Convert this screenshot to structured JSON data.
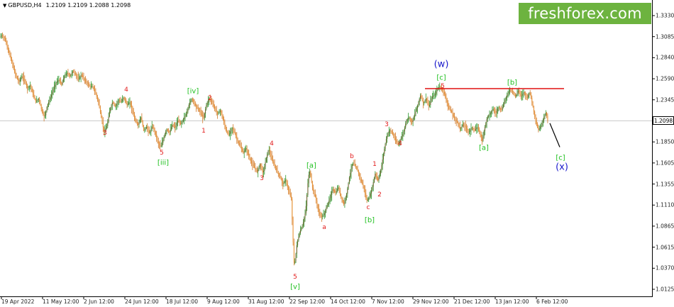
{
  "header": {
    "symbol": "GBPUSD,H4",
    "ohlc": "1.2109 1.2109 1.2088 1.2098"
  },
  "logo": {
    "text": "freshforex.com"
  },
  "current_price": "1.2098",
  "chart_data": {
    "type": "line",
    "y_ticks": [
      "1.3330",
      "1.3085",
      "1.2840",
      "1.2590",
      "1.2345",
      "1.2098",
      "1.1850",
      "1.1605",
      "1.1355",
      "1.1110",
      "1.0865",
      "1.0615",
      "1.0370",
      "1.0125"
    ],
    "x_ticks": [
      "19 Apr 2022",
      "11 May 12:00",
      "2 Jun 12:00",
      "24 Jun 12:00",
      "18 Jul 12:00",
      "9 Aug 12:00",
      "31 Aug 12:00",
      "22 Sep 12:00",
      "14 Oct 12:00",
      "7 Nov 12:00",
      "29 Nov 12:00",
      "21 Dec 12:00",
      "13 Jan 12:00",
      "6 Feb 12:00"
    ],
    "price_path": [
      [
        0,
        1.307
      ],
      [
        4,
        1.31
      ],
      [
        8,
        1.306
      ],
      [
        12,
        1.295
      ],
      [
        16,
        1.284
      ],
      [
        20,
        1.272
      ],
      [
        24,
        1.262
      ],
      [
        28,
        1.255
      ],
      [
        32,
        1.262
      ],
      [
        36,
        1.257
      ],
      [
        40,
        1.248
      ],
      [
        44,
        1.251
      ],
      [
        48,
        1.24
      ],
      [
        52,
        1.232
      ],
      [
        56,
        1.236
      ],
      [
        60,
        1.222
      ],
      [
        64,
        1.214
      ],
      [
        68,
        1.228
      ],
      [
        72,
        1.236
      ],
      [
        76,
        1.246
      ],
      [
        80,
        1.254
      ],
      [
        84,
        1.258
      ],
      [
        88,
        1.252
      ],
      [
        92,
        1.262
      ],
      [
        96,
        1.266
      ],
      [
        100,
        1.262
      ],
      [
        104,
        1.268
      ],
      [
        108,
        1.264
      ],
      [
        112,
        1.258
      ],
      [
        116,
        1.264
      ],
      [
        120,
        1.258
      ],
      [
        124,
        1.254
      ],
      [
        128,
        1.25
      ],
      [
        132,
        1.25
      ],
      [
        136,
        1.242
      ],
      [
        140,
        1.232
      ],
      [
        144,
        1.214
      ],
      [
        148,
        1.196
      ],
      [
        152,
        1.204
      ],
      [
        156,
        1.222
      ],
      [
        160,
        1.232
      ],
      [
        164,
        1.226
      ],
      [
        168,
        1.234
      ],
      [
        172,
        1.232
      ],
      [
        176,
        1.238
      ],
      [
        180,
        1.228
      ],
      [
        184,
        1.232
      ],
      [
        188,
        1.222
      ],
      [
        192,
        1.21
      ],
      [
        196,
        1.205
      ],
      [
        200,
        1.214
      ],
      [
        204,
        1.198
      ],
      [
        208,
        1.203
      ],
      [
        212,
        1.195
      ],
      [
        216,
        1.204
      ],
      [
        220,
        1.196
      ],
      [
        224,
        1.184
      ],
      [
        228,
        1.179
      ],
      [
        232,
        1.19
      ],
      [
        236,
        1.2
      ],
      [
        240,
        1.196
      ],
      [
        244,
        1.205
      ],
      [
        248,
        1.202
      ],
      [
        252,
        1.21
      ],
      [
        256,
        1.206
      ],
      [
        260,
        1.212
      ],
      [
        264,
        1.218
      ],
      [
        268,
        1.23
      ],
      [
        272,
        1.236
      ],
      [
        276,
        1.229
      ],
      [
        280,
        1.224
      ],
      [
        284,
        1.22
      ],
      [
        288,
        1.212
      ],
      [
        292,
        1.228
      ],
      [
        296,
        1.236
      ],
      [
        300,
        1.232
      ],
      [
        304,
        1.224
      ],
      [
        308,
        1.218
      ],
      [
        312,
        1.222
      ],
      [
        316,
        1.21
      ],
      [
        320,
        1.198
      ],
      [
        324,
        1.193
      ],
      [
        328,
        1.202
      ],
      [
        332,
        1.196
      ],
      [
        336,
        1.186
      ],
      [
        340,
        1.18
      ],
      [
        344,
        1.172
      ],
      [
        348,
        1.178
      ],
      [
        352,
        1.168
      ],
      [
        356,
        1.16
      ],
      [
        360,
        1.155
      ],
      [
        364,
        1.15
      ],
      [
        368,
        1.16
      ],
      [
        372,
        1.148
      ],
      [
        376,
        1.164
      ],
      [
        380,
        1.177
      ],
      [
        384,
        1.165
      ],
      [
        388,
        1.158
      ],
      [
        392,
        1.15
      ],
      [
        396,
        1.144
      ],
      [
        400,
        1.136
      ],
      [
        404,
        1.14
      ],
      [
        408,
        1.128
      ],
      [
        412,
        1.118
      ],
      [
        414,
        1.075
      ],
      [
        416,
        1.038
      ],
      [
        418,
        1.052
      ],
      [
        420,
        1.067
      ],
      [
        424,
        1.08
      ],
      [
        428,
        1.088
      ],
      [
        432,
        1.104
      ],
      [
        434,
        1.124
      ],
      [
        436,
        1.145
      ],
      [
        438,
        1.151
      ],
      [
        440,
        1.14
      ],
      [
        442,
        1.13
      ],
      [
        446,
        1.12
      ],
      [
        450,
        1.104
      ],
      [
        454,
        1.097
      ],
      [
        458,
        1.1
      ],
      [
        462,
        1.11
      ],
      [
        466,
        1.118
      ],
      [
        470,
        1.13
      ],
      [
        474,
        1.125
      ],
      [
        478,
        1.132
      ],
      [
        482,
        1.12
      ],
      [
        486,
        1.112
      ],
      [
        490,
        1.125
      ],
      [
        494,
        1.145
      ],
      [
        498,
        1.16
      ],
      [
        502,
        1.157
      ],
      [
        506,
        1.15
      ],
      [
        510,
        1.14
      ],
      [
        514,
        1.132
      ],
      [
        518,
        1.116
      ],
      [
        522,
        1.12
      ],
      [
        526,
        1.132
      ],
      [
        530,
        1.148
      ],
      [
        534,
        1.14
      ],
      [
        538,
        1.152
      ],
      [
        542,
        1.172
      ],
      [
        546,
        1.19
      ],
      [
        550,
        1.199
      ],
      [
        554,
        1.196
      ],
      [
        558,
        1.188
      ],
      [
        562,
        1.182
      ],
      [
        566,
        1.188
      ],
      [
        570,
        1.196
      ],
      [
        574,
        1.21
      ],
      [
        578,
        1.214
      ],
      [
        582,
        1.208
      ],
      [
        586,
        1.218
      ],
      [
        590,
        1.228
      ],
      [
        594,
        1.24
      ],
      [
        598,
        1.23
      ],
      [
        602,
        1.236
      ],
      [
        606,
        1.226
      ],
      [
        610,
        1.238
      ],
      [
        614,
        1.24
      ],
      [
        618,
        1.248
      ],
      [
        622,
        1.25
      ],
      [
        626,
        1.244
      ],
      [
        630,
        1.236
      ],
      [
        634,
        1.224
      ],
      [
        638,
        1.22
      ],
      [
        642,
        1.212
      ],
      [
        646,
        1.208
      ],
      [
        650,
        1.2
      ],
      [
        654,
        1.206
      ],
      [
        658,
        1.202
      ],
      [
        662,
        1.196
      ],
      [
        666,
        1.202
      ],
      [
        670,
        1.198
      ],
      [
        674,
        1.203
      ],
      [
        678,
        1.195
      ],
      [
        681,
        1.186
      ],
      [
        684,
        1.2
      ],
      [
        688,
        1.214
      ],
      [
        692,
        1.218
      ],
      [
        696,
        1.224
      ],
      [
        700,
        1.218
      ],
      [
        704,
        1.226
      ],
      [
        708,
        1.222
      ],
      [
        712,
        1.232
      ],
      [
        716,
        1.24
      ],
      [
        720,
        1.246
      ],
      [
        724,
        1.244
      ],
      [
        728,
        1.238
      ],
      [
        732,
        1.246
      ],
      [
        736,
        1.238
      ],
      [
        740,
        1.244
      ],
      [
        744,
        1.236
      ],
      [
        748,
        1.244
      ],
      [
        752,
        1.228
      ],
      [
        756,
        1.21
      ],
      [
        760,
        1.199
      ],
      [
        764,
        1.204
      ],
      [
        768,
        1.214
      ],
      [
        771,
        1.22
      ],
      [
        773,
        1.21
      ]
    ]
  },
  "resistance_line": {
    "x1": 599,
    "x2": 795,
    "price": 1.2475
  },
  "projection": {
    "x1": 775,
    "y1": 1.207,
    "x2": 789,
    "y2": 1.179
  },
  "wave_labels": [
    {
      "name": "wave-label-red-3-a",
      "text": "3",
      "x": 148,
      "y": 1.195,
      "color": "red"
    },
    {
      "name": "wave-label-red-4-a",
      "text": "4",
      "x": 178,
      "y": 1.246,
      "color": "red"
    },
    {
      "name": "wave-label-red-5-a",
      "text": "5",
      "x": 228,
      "y": 1.172,
      "color": "red"
    },
    {
      "name": "wave-label-iii",
      "text": "[iii]",
      "x": 230,
      "y": 1.16,
      "color": "green"
    },
    {
      "name": "wave-label-iv",
      "text": "[iv]",
      "x": 272,
      "y": 1.244,
      "color": "green"
    },
    {
      "name": "wave-label-red-2-a",
      "text": "2",
      "x": 296,
      "y": 1.236,
      "color": "red"
    },
    {
      "name": "wave-label-red-1-a",
      "text": "1",
      "x": 287,
      "y": 1.198,
      "color": "red"
    },
    {
      "name": "wave-label-red-4-b",
      "text": "4",
      "x": 383,
      "y": 1.183,
      "color": "red"
    },
    {
      "name": "wave-label-red-3-b",
      "text": "3",
      "x": 369,
      "y": 1.142,
      "color": "red"
    },
    {
      "name": "wave-label-red-5-b",
      "text": "5",
      "x": 416,
      "y": 1.027,
      "color": "red"
    },
    {
      "name": "wave-label-v",
      "text": "[v]",
      "x": 416,
      "y": 1.015,
      "color": "green"
    },
    {
      "name": "wave-label-a-green",
      "text": "[a]",
      "x": 439,
      "y": 1.157,
      "color": "green"
    },
    {
      "name": "wave-label-red-a",
      "text": "a",
      "x": 457,
      "y": 1.085,
      "color": "red"
    },
    {
      "name": "wave-label-red-b",
      "text": "b",
      "x": 496,
      "y": 1.168,
      "color": "red"
    },
    {
      "name": "wave-label-red-1-b",
      "text": "1",
      "x": 528,
      "y": 1.159,
      "color": "red"
    },
    {
      "name": "wave-label-red-c",
      "text": "c",
      "x": 519,
      "y": 1.108,
      "color": "red"
    },
    {
      "name": "wave-label-b-green-a",
      "text": "[b]",
      "x": 521,
      "y": 1.093,
      "color": "green"
    },
    {
      "name": "wave-label-red-2-b",
      "text": "2",
      "x": 535,
      "y": 1.123,
      "color": "red"
    },
    {
      "name": "wave-label-red-3-c",
      "text": "3",
      "x": 545,
      "y": 1.205,
      "color": "red"
    },
    {
      "name": "wave-label-red-4-c",
      "text": "4",
      "x": 564,
      "y": 1.183,
      "color": "red"
    },
    {
      "name": "wave-label-w",
      "text": "(w)",
      "x": 622,
      "y": 1.276,
      "color": "blue"
    },
    {
      "name": "wave-label-c-green-a",
      "text": "[c]",
      "x": 622,
      "y": 1.26,
      "color": "green"
    },
    {
      "name": "wave-label-red-5-c",
      "text": "5",
      "x": 624,
      "y": 1.25,
      "color": "red"
    },
    {
      "name": "wave-label-a-green-b",
      "text": "[a]",
      "x": 682,
      "y": 1.178,
      "color": "green"
    },
    {
      "name": "wave-label-b-green-b",
      "text": "[b]",
      "x": 722,
      "y": 1.254,
      "color": "green"
    },
    {
      "name": "wave-label-c-green-b",
      "text": "[c]",
      "x": 790,
      "y": 1.166,
      "color": "green"
    },
    {
      "name": "wave-label-x",
      "text": "(x)",
      "x": 792,
      "y": 1.155,
      "color": "blue"
    }
  ]
}
